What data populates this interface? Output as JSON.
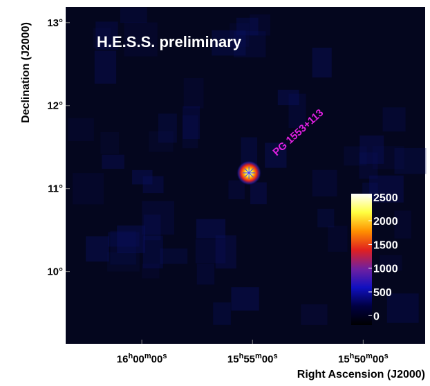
{
  "chart_data": {
    "type": "skymap",
    "title": "H.E.S.S. preliminary",
    "xlabel": "Right Ascension (J2000)",
    "ylabel": "Declination (J2000)",
    "xlim": [
      240.86,
      236.8
    ],
    "ylim": [
      9.13,
      13.19
    ],
    "xticks": [
      {
        "value": 240,
        "label": "16h00m00s"
      },
      {
        "value": 238.75,
        "label": "15h55m00s"
      },
      {
        "value": 237.5,
        "label": "15h50m00s"
      }
    ],
    "yticks": [
      {
        "value": 10,
        "label": "10°"
      },
      {
        "value": 11,
        "label": "11°"
      },
      {
        "value": 12,
        "label": "12°"
      },
      {
        "value": 13,
        "label": "13°"
      }
    ],
    "source": {
      "label": "PG 1553+113",
      "ra": 238.79,
      "dec": 11.19,
      "value": 2500
    },
    "colorbar": {
      "clim": [
        -200,
        2570
      ],
      "ticks": [
        0,
        500,
        1000,
        1500,
        2000,
        2500
      ],
      "colormap": [
        "#000000",
        "#000040",
        "#1010c0",
        "#7020a0",
        "#e02020",
        "#ff9000",
        "#ffff40",
        "#ffffff"
      ]
    },
    "background_color": "#04061e",
    "annotation_color": "#e020e0"
  }
}
